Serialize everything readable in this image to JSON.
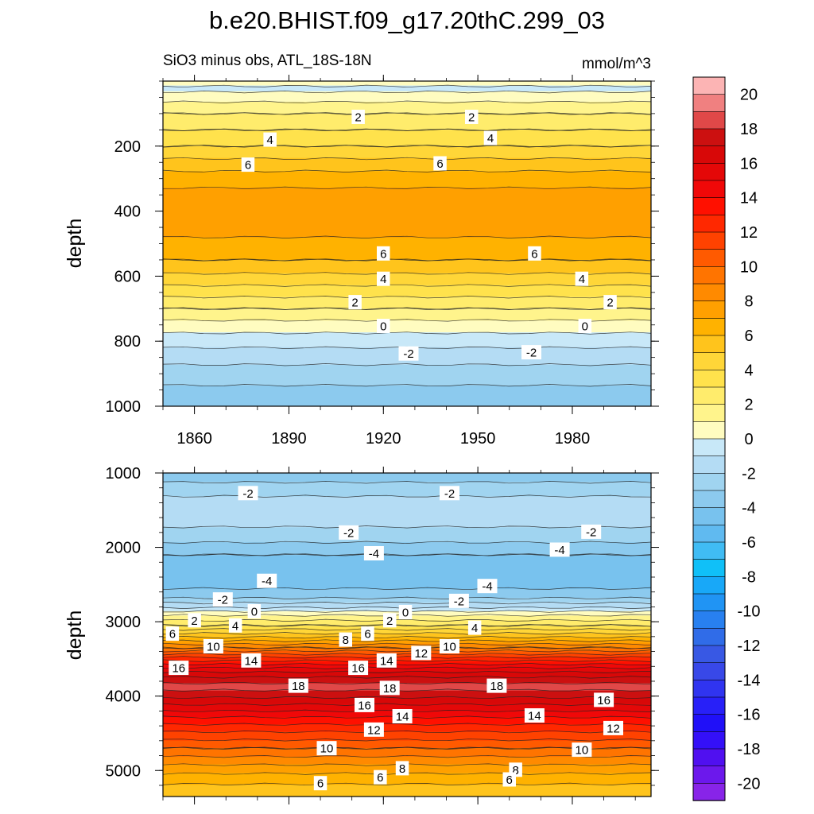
{
  "figure": {
    "title": "b.e20.BHIST.f09_g17.20thC.299_03",
    "subtitle_left": "SiO3 minus obs, ATL_18S-18N",
    "subtitle_right": "mmol/m^3"
  },
  "chart_data": [
    {
      "type": "heatmap",
      "panel": "upper",
      "xlabel": "",
      "ylabel": "depth",
      "xlim": [
        1850,
        2005
      ],
      "ylim": [
        1000,
        0
      ],
      "x_ticks": [
        1860,
        1890,
        1920,
        1950,
        1980
      ],
      "y_ticks": [
        200,
        400,
        600,
        800,
        1000
      ],
      "depth_profile": [
        {
          "depth": 0,
          "value": 0.5
        },
        {
          "depth": 25,
          "value": -0.3
        },
        {
          "depth": 50,
          "value": 0.6
        },
        {
          "depth": 100,
          "value": 2.0
        },
        {
          "depth": 150,
          "value": 3.0
        },
        {
          "depth": 200,
          "value": 4.0
        },
        {
          "depth": 250,
          "value": 5.3
        },
        {
          "depth": 300,
          "value": 6.6
        },
        {
          "depth": 350,
          "value": 7.3
        },
        {
          "depth": 400,
          "value": 7.5
        },
        {
          "depth": 450,
          "value": 7.3
        },
        {
          "depth": 500,
          "value": 6.8
        },
        {
          "depth": 550,
          "value": 6.0
        },
        {
          "depth": 600,
          "value": 4.8
        },
        {
          "depth": 650,
          "value": 3.4
        },
        {
          "depth": 700,
          "value": 2.0
        },
        {
          "depth": 750,
          "value": 0.6
        },
        {
          "depth": 800,
          "value": -0.6
        },
        {
          "depth": 850,
          "value": -1.6
        },
        {
          "depth": 900,
          "value": -2.5
        },
        {
          "depth": 950,
          "value": -3.2
        },
        {
          "depth": 1000,
          "value": -3.8
        }
      ],
      "contour_labels": [
        {
          "text": "2",
          "year": 1912,
          "depth": 110
        },
        {
          "text": "2",
          "year": 1948,
          "depth": 110
        },
        {
          "text": "4",
          "year": 1884,
          "depth": 180
        },
        {
          "text": "4",
          "year": 1954,
          "depth": 175
        },
        {
          "text": "6",
          "year": 1877,
          "depth": 257
        },
        {
          "text": "6",
          "year": 1938,
          "depth": 253
        },
        {
          "text": "6",
          "year": 1920,
          "depth": 530
        },
        {
          "text": "6",
          "year": 1968,
          "depth": 530
        },
        {
          "text": "4",
          "year": 1920,
          "depth": 608
        },
        {
          "text": "4",
          "year": 1983,
          "depth": 608
        },
        {
          "text": "2",
          "year": 1911,
          "depth": 680
        },
        {
          "text": "2",
          "year": 1992,
          "depth": 680
        },
        {
          "text": "0",
          "year": 1920,
          "depth": 753
        },
        {
          "text": "0",
          "year": 1984,
          "depth": 753
        },
        {
          "text": "-2",
          "year": 1928,
          "depth": 838
        },
        {
          "text": "-2",
          "year": 1967,
          "depth": 834
        }
      ]
    },
    {
      "type": "heatmap",
      "panel": "lower",
      "xlabel": "",
      "ylabel": "depth",
      "xlim": [
        1850,
        2005
      ],
      "ylim": [
        5350,
        1000
      ],
      "x_ticks": [
        1860,
        1890,
        1920,
        1950,
        1980
      ],
      "y_ticks": [
        1000,
        2000,
        3000,
        4000,
        5000
      ],
      "depth_profile": [
        {
          "depth": 1000,
          "value": -3.8
        },
        {
          "depth": 1250,
          "value": -2.2
        },
        {
          "depth": 1500,
          "value": -1.4
        },
        {
          "depth": 1800,
          "value": -2.2
        },
        {
          "depth": 2100,
          "value": -4.0
        },
        {
          "depth": 2400,
          "value": -4.8
        },
        {
          "depth": 2650,
          "value": -3.5
        },
        {
          "depth": 2800,
          "value": -1.2
        },
        {
          "depth": 2900,
          "value": 0.8
        },
        {
          "depth": 3050,
          "value": 3.0
        },
        {
          "depth": 3200,
          "value": 5.8
        },
        {
          "depth": 3350,
          "value": 9.0
        },
        {
          "depth": 3500,
          "value": 12.5
        },
        {
          "depth": 3650,
          "value": 15.6
        },
        {
          "depth": 3800,
          "value": 17.8
        },
        {
          "depth": 3880,
          "value": 18.4
        },
        {
          "depth": 4000,
          "value": 17.2
        },
        {
          "depth": 4150,
          "value": 15.6
        },
        {
          "depth": 4300,
          "value": 13.8
        },
        {
          "depth": 4500,
          "value": 11.8
        },
        {
          "depth": 4700,
          "value": 10.0
        },
        {
          "depth": 4900,
          "value": 8.2
        },
        {
          "depth": 5100,
          "value": 6.5
        },
        {
          "depth": 5350,
          "value": 5.0
        }
      ],
      "contour_labels": [
        {
          "text": "-2",
          "year": 1877,
          "depth": 1270
        },
        {
          "text": "-2",
          "year": 1941,
          "depth": 1270
        },
        {
          "text": "-2",
          "year": 1909,
          "depth": 1800
        },
        {
          "text": "-2",
          "year": 1986,
          "depth": 1790
        },
        {
          "text": "-4",
          "year": 1917,
          "depth": 2080
        },
        {
          "text": "-4",
          "year": 1976,
          "depth": 2030
        },
        {
          "text": "-4",
          "year": 1883,
          "depth": 2450
        },
        {
          "text": "-4",
          "year": 1953,
          "depth": 2520
        },
        {
          "text": "-2",
          "year": 1869,
          "depth": 2700
        },
        {
          "text": "-2",
          "year": 1944,
          "depth": 2720
        },
        {
          "text": "0",
          "year": 1879,
          "depth": 2860
        },
        {
          "text": "0",
          "year": 1927,
          "depth": 2870
        },
        {
          "text": "2",
          "year": 1860,
          "depth": 2980
        },
        {
          "text": "2",
          "year": 1922,
          "depth": 2980
        },
        {
          "text": "4",
          "year": 1873,
          "depth": 3050
        },
        {
          "text": "4",
          "year": 1949,
          "depth": 3080
        },
        {
          "text": "6",
          "year": 1853,
          "depth": 3160
        },
        {
          "text": "6",
          "year": 1915,
          "depth": 3160
        },
        {
          "text": "8",
          "year": 1908,
          "depth": 3240
        },
        {
          "text": "10",
          "year": 1866,
          "depth": 3330
        },
        {
          "text": "10",
          "year": 1941,
          "depth": 3330
        },
        {
          "text": "12",
          "year": 1932,
          "depth": 3420
        },
        {
          "text": "14",
          "year": 1878,
          "depth": 3520
        },
        {
          "text": "14",
          "year": 1921,
          "depth": 3520
        },
        {
          "text": "16",
          "year": 1855,
          "depth": 3620
        },
        {
          "text": "16",
          "year": 1912,
          "depth": 3620
        },
        {
          "text": "18",
          "year": 1893,
          "depth": 3860
        },
        {
          "text": "18",
          "year": 1922,
          "depth": 3890
        },
        {
          "text": "18",
          "year": 1956,
          "depth": 3860
        },
        {
          "text": "16",
          "year": 1914,
          "depth": 4120
        },
        {
          "text": "16",
          "year": 1990,
          "depth": 4050
        },
        {
          "text": "14",
          "year": 1926,
          "depth": 4270
        },
        {
          "text": "14",
          "year": 1968,
          "depth": 4260
        },
        {
          "text": "12",
          "year": 1917,
          "depth": 4450
        },
        {
          "text": "12",
          "year": 1993,
          "depth": 4430
        },
        {
          "text": "10",
          "year": 1902,
          "depth": 4700
        },
        {
          "text": "10",
          "year": 1983,
          "depth": 4720
        },
        {
          "text": "8",
          "year": 1926,
          "depth": 4970
        },
        {
          "text": "8",
          "year": 1962,
          "depth": 4990
        },
        {
          "text": "6",
          "year": 1919,
          "depth": 5090
        },
        {
          "text": "6",
          "year": 1960,
          "depth": 5120
        },
        {
          "text": "6",
          "year": 1900,
          "depth": 5170
        }
      ]
    }
  ],
  "colorbar": {
    "levels": [
      21,
      20,
      19,
      18,
      17,
      16,
      15,
      14,
      13,
      12,
      11,
      10,
      9,
      8,
      7,
      6,
      5,
      4,
      3,
      2,
      1,
      0,
      -1,
      -2,
      -3,
      -4,
      -5,
      -6,
      -7,
      -8,
      -9,
      -10,
      -11,
      -12,
      -13,
      -14,
      -15,
      -16,
      -17,
      -18,
      -19,
      -20,
      -21
    ],
    "colors": [
      "#fcb4b4",
      "#f08080",
      "#e04848",
      "#cc1010",
      "#d80808",
      "#e40808",
      "#f00808",
      "#ff1000",
      "#ff2800",
      "#ff4200",
      "#ff5a00",
      "#ff7400",
      "#ff8a00",
      "#ffa000",
      "#ffb200",
      "#ffc41c",
      "#ffd638",
      "#ffe24c",
      "#ffec6c",
      "#fff48c",
      "#fffcc0",
      "#c8e8f8",
      "#b4dcf4",
      "#a0d4f0",
      "#8ccaee",
      "#78c2ee",
      "#60baf0",
      "#40bcf4",
      "#10c0f8",
      "#18a8f8",
      "#2094f4",
      "#2880f0",
      "#306ce8",
      "#3858e4",
      "#3848e8",
      "#3034f0",
      "#2820f8",
      "#2010f8",
      "#3410f8",
      "#5010f0",
      "#6c18ec",
      "#8824e8"
    ],
    "tick_labels": [
      "20",
      "18",
      "16",
      "14",
      "12",
      "10",
      "8",
      "6",
      "4",
      "2",
      "0",
      "-2",
      "-4",
      "-6",
      "-8",
      "-10",
      "-12",
      "-14",
      "-16",
      "-18",
      "-20"
    ]
  }
}
